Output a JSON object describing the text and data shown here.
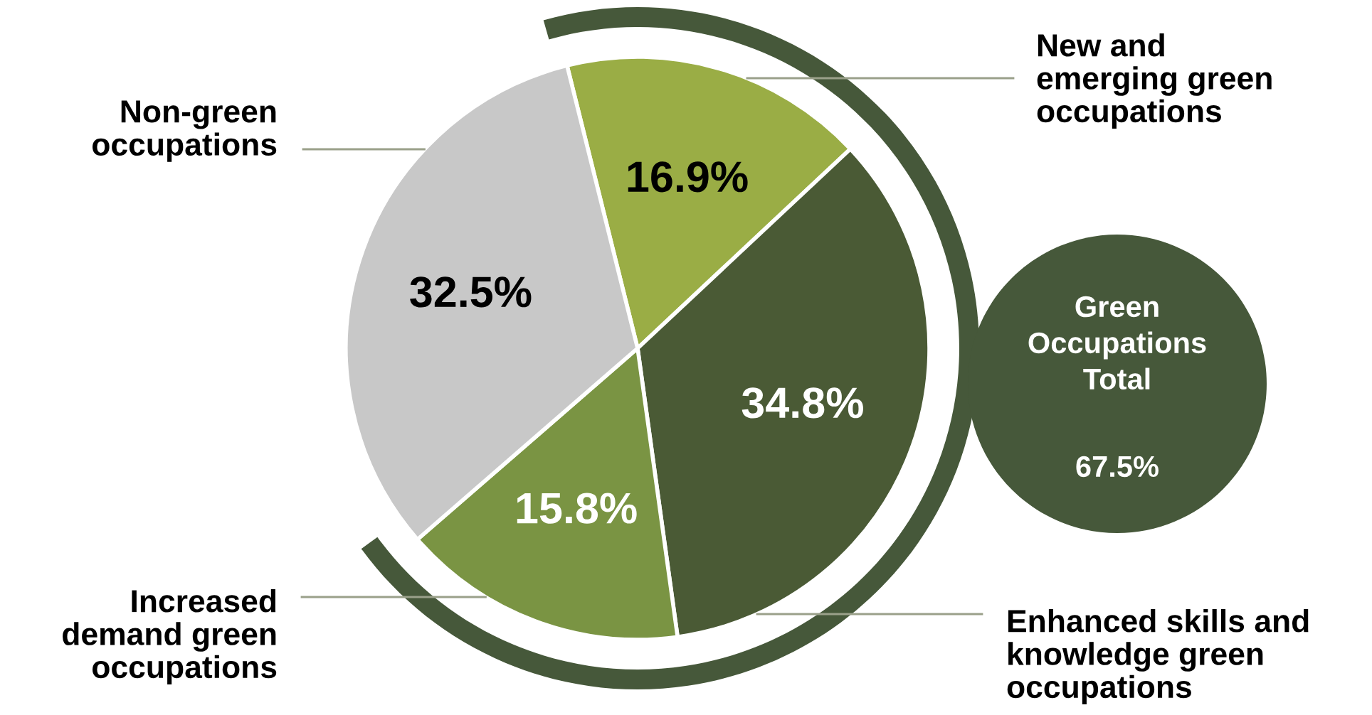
{
  "chart_data": {
    "type": "pie",
    "categories": [
      "New and\nemerging green\noccupations",
      "Enhanced skills and\nknowledge green\noccupations",
      "Increased\ndemand green\noccupations",
      "Non-green\noccupations"
    ],
    "values": [
      16.9,
      34.8,
      15.8,
      32.5
    ],
    "colors": [
      "#9aad45",
      "#4a5a35",
      "#7a9443",
      "#c8c8c8"
    ],
    "value_labels": [
      "16.9%",
      "34.8%",
      "15.8%",
      "32.5%"
    ],
    "annotations": [
      "Green\nOccupations\nTotal",
      "67.5%"
    ],
    "legend": false
  }
}
